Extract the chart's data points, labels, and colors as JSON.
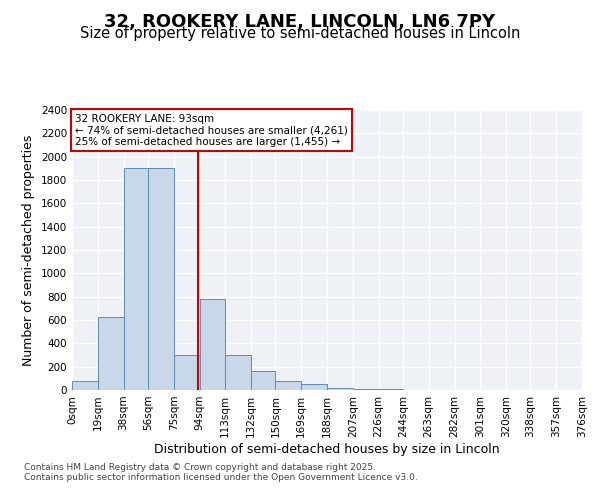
{
  "title": "32, ROOKERY LANE, LINCOLN, LN6 7PY",
  "subtitle": "Size of property relative to semi-detached houses in Lincoln",
  "xlabel": "Distribution of semi-detached houses by size in Lincoln",
  "ylabel": "Number of semi-detached properties",
  "bar_color": "#c8d8e8",
  "bar_edge_color": "#5b8db8",
  "background_color": "#eef2f7",
  "grid_color": "#ffffff",
  "annotation_box_color": "#cc0000",
  "property_line_color": "#cc0000",
  "property_sqm": 93,
  "annotation_text": "32 ROOKERY LANE: 93sqm\n← 74% of semi-detached houses are smaller (4,261)\n25% of semi-detached houses are larger (1,455) →",
  "bin_edges": [
    0,
    19,
    38,
    56,
    75,
    94,
    113,
    132,
    150,
    169,
    188,
    207,
    226,
    244,
    263,
    282,
    301,
    320,
    338,
    357,
    376
  ],
  "tick_labels": [
    "0sqm",
    "19sqm",
    "38sqm",
    "56sqm",
    "75sqm",
    "94sqm",
    "113sqm",
    "132sqm",
    "150sqm",
    "169sqm",
    "188sqm",
    "207sqm",
    "226sqm",
    "244sqm",
    "263sqm",
    "282sqm",
    "301sqm",
    "320sqm",
    "338sqm",
    "357sqm",
    "376sqm"
  ],
  "values": [
    80,
    630,
    1900,
    1900,
    300,
    780,
    300,
    160,
    80,
    50,
    20,
    10,
    5,
    3,
    2,
    1,
    0,
    0,
    0,
    0
  ],
  "ylim": [
    0,
    2400
  ],
  "yticks": [
    0,
    200,
    400,
    600,
    800,
    1000,
    1200,
    1400,
    1600,
    1800,
    2000,
    2200,
    2400
  ],
  "footer": "Contains HM Land Registry data © Crown copyright and database right 2025.\nContains public sector information licensed under the Open Government Licence v3.0.",
  "title_fontsize": 13,
  "subtitle_fontsize": 10.5,
  "axis_label_fontsize": 9,
  "tick_fontsize": 7.5,
  "footer_fontsize": 6.5
}
